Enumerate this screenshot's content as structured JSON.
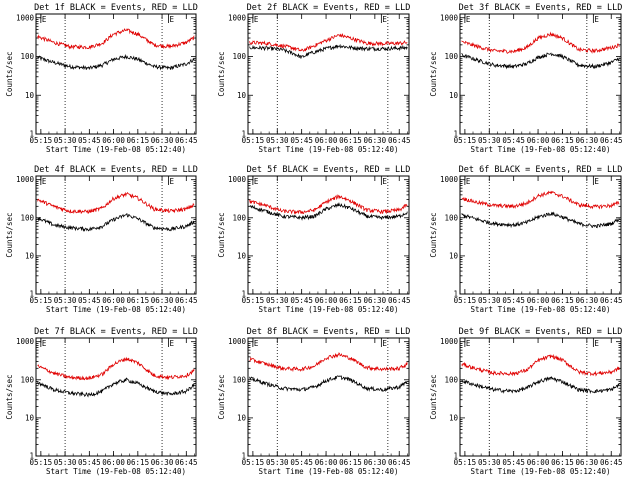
{
  "figure": {
    "xlabel": "Start Time (19-Feb-08 05:12:40)",
    "ylabel": "Counts/sec",
    "x_tick_labels": [
      "05:15",
      "05:30",
      "05:45",
      "06:00",
      "06:15",
      "06:30",
      "06:45"
    ],
    "y_tick_labels": [
      "1",
      "10",
      "100",
      "1000"
    ],
    "marker_letters": [
      "E",
      "E",
      "E",
      "E",
      "E",
      "E",
      "E",
      "E",
      "E",
      "E",
      "E",
      "E",
      "E",
      "E",
      "E",
      "E",
      "E",
      "E"
    ],
    "colors": {
      "events": "#000000",
      "lld": "#e00000",
      "axes": "#000000",
      "background": "#ffffff"
    }
  },
  "chart_data": [
    {
      "type": "line",
      "title": "Det 1f BLACK = Events, RED = LLD",
      "xlabel": "Start Time (19-Feb-08 05:12:40)",
      "ylabel": "Counts/sec",
      "y_log": true,
      "ylim": [
        1,
        1000
      ],
      "x": [
        "05:13",
        "05:23",
        "05:33",
        "05:45",
        "05:53",
        "06:00",
        "06:08",
        "06:15",
        "06:25",
        "06:35",
        "06:45",
        "06:50"
      ],
      "series": [
        {
          "name": "Events",
          "color": "#000000",
          "values": [
            95,
            70,
            55,
            50,
            60,
            85,
            100,
            85,
            55,
            50,
            65,
            85
          ]
        },
        {
          "name": "LLD",
          "color": "#e00000",
          "values": [
            330,
            230,
            180,
            175,
            220,
            380,
            480,
            380,
            200,
            180,
            230,
            310
          ]
        }
      ],
      "vlines": [
        "05:30",
        "06:30"
      ],
      "E_markers": [
        "05:15",
        "06:34"
      ],
      "grid": false,
      "legend": "none"
    },
    {
      "type": "line",
      "title": "Det 2f BLACK = Events, RED = LLD",
      "xlabel": "Start Time (19-Feb-08 05:12:40)",
      "ylabel": "Counts/sec",
      "y_log": true,
      "ylim": [
        1,
        1000
      ],
      "x": [
        "05:13",
        "05:23",
        "05:33",
        "05:40",
        "05:45",
        "05:50",
        "06:00",
        "06:08",
        "06:15",
        "06:25",
        "06:35",
        "06:45",
        "06:50"
      ],
      "series": [
        {
          "name": "Events",
          "color": "#000000",
          "values": [
            170,
            165,
            150,
            120,
            95,
            120,
            160,
            190,
            170,
            160,
            160,
            165,
            170
          ]
        },
        {
          "name": "LLD",
          "color": "#e00000",
          "values": [
            230,
            220,
            190,
            165,
            140,
            170,
            260,
            360,
            300,
            220,
            215,
            220,
            230
          ]
        }
      ],
      "vlines": [
        "05:30",
        "06:38"
      ],
      "E_markers": [
        "05:15",
        "06:34"
      ],
      "grid": false,
      "legend": "none"
    },
    {
      "type": "line",
      "title": "Det 3f BLACK = Events, RED = LLD",
      "xlabel": "Start Time (19-Feb-08 05:12:40)",
      "ylabel": "Counts/sec",
      "y_log": true,
      "ylim": [
        1,
        1000
      ],
      "x": [
        "05:13",
        "05:23",
        "05:33",
        "05:45",
        "05:53",
        "06:00",
        "06:08",
        "06:15",
        "06:25",
        "06:35",
        "06:45",
        "06:50"
      ],
      "series": [
        {
          "name": "Events",
          "color": "#000000",
          "values": [
            110,
            80,
            60,
            55,
            65,
            95,
            120,
            100,
            60,
            55,
            70,
            90
          ]
        },
        {
          "name": "LLD",
          "color": "#e00000",
          "values": [
            240,
            180,
            140,
            135,
            170,
            300,
            380,
            300,
            150,
            140,
            170,
            200
          ]
        }
      ],
      "vlines": [
        "05:30",
        "06:30"
      ],
      "E_markers": [
        "05:15",
        "06:34"
      ],
      "grid": false,
      "legend": "none"
    },
    {
      "type": "line",
      "title": "Det 4f BLACK = Events, RED = LLD",
      "xlabel": "Start Time (19-Feb-08 05:12:40)",
      "ylabel": "Counts/sec",
      "y_log": true,
      "ylim": [
        1,
        1000
      ],
      "x": [
        "05:13",
        "05:23",
        "05:33",
        "05:45",
        "05:53",
        "06:00",
        "06:08",
        "06:15",
        "06:25",
        "06:35",
        "06:45",
        "06:50"
      ],
      "series": [
        {
          "name": "Events",
          "color": "#000000",
          "values": [
            100,
            65,
            55,
            50,
            60,
            90,
            120,
            95,
            55,
            50,
            60,
            80
          ]
        },
        {
          "name": "LLD",
          "color": "#e00000",
          "values": [
            300,
            200,
            150,
            145,
            180,
            320,
            420,
            330,
            170,
            150,
            170,
            220
          ]
        }
      ],
      "vlines": [
        "05:30",
        "06:30"
      ],
      "E_markers": [
        "05:15",
        "06:34"
      ],
      "grid": false,
      "legend": "none"
    },
    {
      "type": "line",
      "title": "Det 5f BLACK = Events, RED = LLD",
      "xlabel": "Start Time (19-Feb-08 05:12:40)",
      "ylabel": "Counts/sec",
      "y_log": true,
      "ylim": [
        1,
        1000
      ],
      "x": [
        "05:13",
        "05:23",
        "05:33",
        "05:45",
        "05:53",
        "06:00",
        "06:08",
        "06:15",
        "06:25",
        "06:35",
        "06:45",
        "06:50"
      ],
      "series": [
        {
          "name": "Events",
          "color": "#000000",
          "values": [
            200,
            150,
            110,
            100,
            110,
            170,
            220,
            180,
            110,
            100,
            110,
            140
          ]
        },
        {
          "name": "LLD",
          "color": "#e00000",
          "values": [
            270,
            210,
            150,
            140,
            160,
            260,
            370,
            280,
            160,
            145,
            160,
            220
          ]
        }
      ],
      "vlines": [
        "05:30",
        "06:38"
      ],
      "E_markers": [
        "05:15",
        "06:34"
      ],
      "grid": false,
      "legend": "none"
    },
    {
      "type": "line",
      "title": "Det 6f BLACK = Events, RED = LLD",
      "xlabel": "Start Time (19-Feb-08 05:12:40)",
      "ylabel": "Counts/sec",
      "y_log": true,
      "ylim": [
        1,
        1000
      ],
      "x": [
        "05:13",
        "05:23",
        "05:33",
        "05:45",
        "05:53",
        "06:00",
        "06:08",
        "06:15",
        "06:25",
        "06:35",
        "06:45",
        "06:50"
      ],
      "series": [
        {
          "name": "Events",
          "color": "#000000",
          "values": [
            120,
            90,
            70,
            65,
            75,
            105,
            130,
            105,
            70,
            60,
            70,
            95
          ]
        },
        {
          "name": "LLD",
          "color": "#e00000",
          "values": [
            330,
            250,
            210,
            200,
            240,
            380,
            460,
            370,
            220,
            195,
            210,
            250
          ]
        }
      ],
      "vlines": [
        "05:30",
        "06:30"
      ],
      "E_markers": [
        "05:15",
        "06:34"
      ],
      "grid": false,
      "legend": "none"
    },
    {
      "type": "line",
      "title": "Det 7f BLACK = Events, RED = LLD",
      "xlabel": "Start Time (19-Feb-08 05:12:40)",
      "ylabel": "Counts/sec",
      "y_log": true,
      "ylim": [
        1,
        1000
      ],
      "x": [
        "05:13",
        "05:23",
        "05:33",
        "05:45",
        "05:53",
        "06:00",
        "06:08",
        "06:15",
        "06:25",
        "06:35",
        "06:45",
        "06:50"
      ],
      "series": [
        {
          "name": "Events",
          "color": "#000000",
          "values": [
            85,
            55,
            45,
            40,
            50,
            80,
            100,
            80,
            50,
            42,
            50,
            75
          ]
        },
        {
          "name": "LLD",
          "color": "#e00000",
          "values": [
            230,
            150,
            115,
            110,
            140,
            260,
            360,
            280,
            130,
            115,
            130,
            180
          ]
        }
      ],
      "vlines": [
        "05:30",
        "06:30"
      ],
      "E_markers": [
        "05:15",
        "06:34"
      ],
      "grid": false,
      "legend": "none"
    },
    {
      "type": "line",
      "title": "Det 8f BLACK = Events, RED = LLD",
      "xlabel": "Start Time (19-Feb-08 05:12:40)",
      "ylabel": "Counts/sec",
      "y_log": true,
      "ylim": [
        1,
        1000
      ],
      "x": [
        "05:13",
        "05:23",
        "05:33",
        "05:45",
        "05:53",
        "06:00",
        "06:08",
        "06:15",
        "06:25",
        "06:35",
        "06:45",
        "06:50"
      ],
      "series": [
        {
          "name": "Events",
          "color": "#000000",
          "values": [
            110,
            80,
            60,
            55,
            65,
            95,
            120,
            100,
            60,
            55,
            65,
            90
          ]
        },
        {
          "name": "LLD",
          "color": "#e00000",
          "values": [
            350,
            260,
            200,
            190,
            230,
            380,
            460,
            370,
            210,
            190,
            200,
            260
          ]
        }
      ],
      "vlines": [
        "05:30",
        "06:38"
      ],
      "E_markers": [
        "05:15",
        "06:34"
      ],
      "grid": false,
      "legend": "none"
    },
    {
      "type": "line",
      "title": "Det 9f BLACK = Events, RED = LLD",
      "xlabel": "Start Time (19-Feb-08 05:12:40)",
      "ylabel": "Counts/sec",
      "y_log": true,
      "ylim": [
        1,
        1000
      ],
      "x": [
        "05:13",
        "05:23",
        "05:33",
        "05:45",
        "05:53",
        "06:00",
        "06:08",
        "06:15",
        "06:25",
        "06:35",
        "06:45",
        "06:50"
      ],
      "series": [
        {
          "name": "Events",
          "color": "#000000",
          "values": [
            95,
            70,
            55,
            50,
            60,
            90,
            110,
            90,
            55,
            50,
            55,
            75
          ]
        },
        {
          "name": "LLD",
          "color": "#e00000",
          "values": [
            260,
            190,
            150,
            145,
            180,
            320,
            420,
            330,
            160,
            145,
            160,
            200
          ]
        }
      ],
      "vlines": [
        "05:30",
        "06:30"
      ],
      "E_markers": [
        "05:15",
        "06:34"
      ],
      "grid": false,
      "legend": "none"
    }
  ]
}
